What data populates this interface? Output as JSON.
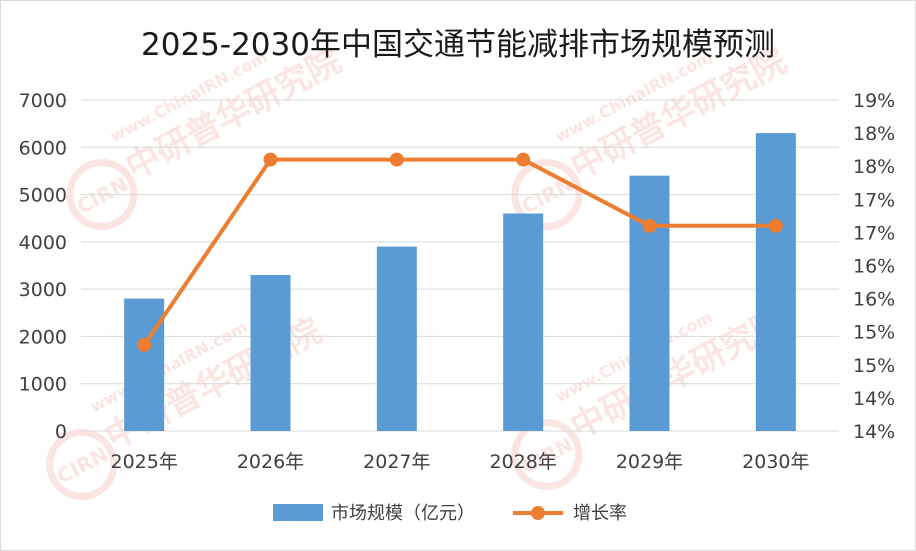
{
  "chart_data": {
    "type": "bar",
    "title": "2025-2030年中国交通节能减排市场规模预测",
    "categories": [
      "2025年",
      "2026年",
      "2027年",
      "2028年",
      "2029年",
      "2030年"
    ],
    "series": [
      {
        "name": "市场规模（亿元）",
        "type": "bar",
        "axis": "left",
        "values": [
          2800,
          3300,
          3900,
          4600,
          5400,
          6300
        ],
        "color": "#5b9bd5"
      },
      {
        "name": "增长率",
        "type": "line",
        "axis": "right",
        "values": [
          15.3,
          18.1,
          18.1,
          18.1,
          17.1,
          17.1
        ],
        "color": "#ed7d31"
      }
    ],
    "left_axis": {
      "ylim": [
        0,
        7000
      ],
      "ticks": [
        "0",
        "1000",
        "2000",
        "3000",
        "4000",
        "5000",
        "6000",
        "7000"
      ]
    },
    "right_axis": {
      "ylim": [
        14,
        19
      ],
      "ticks": [
        "14%",
        "14%",
        "15%",
        "15%",
        "16%",
        "16%",
        "17%",
        "17%",
        "18%",
        "18%",
        "19%"
      ]
    },
    "grid": true,
    "legend_position": "bottom"
  },
  "watermark": {
    "url_text": "www.ChinaIRN.com",
    "name_text": "中研普华研究院",
    "logo_text": "CIRN",
    "color": "#e8746a"
  },
  "colors": {
    "bar": "#5b9bd5",
    "line": "#ed7d31",
    "grid": "#d9d9d9",
    "text": "#404040",
    "title": "#1a1a1a"
  }
}
